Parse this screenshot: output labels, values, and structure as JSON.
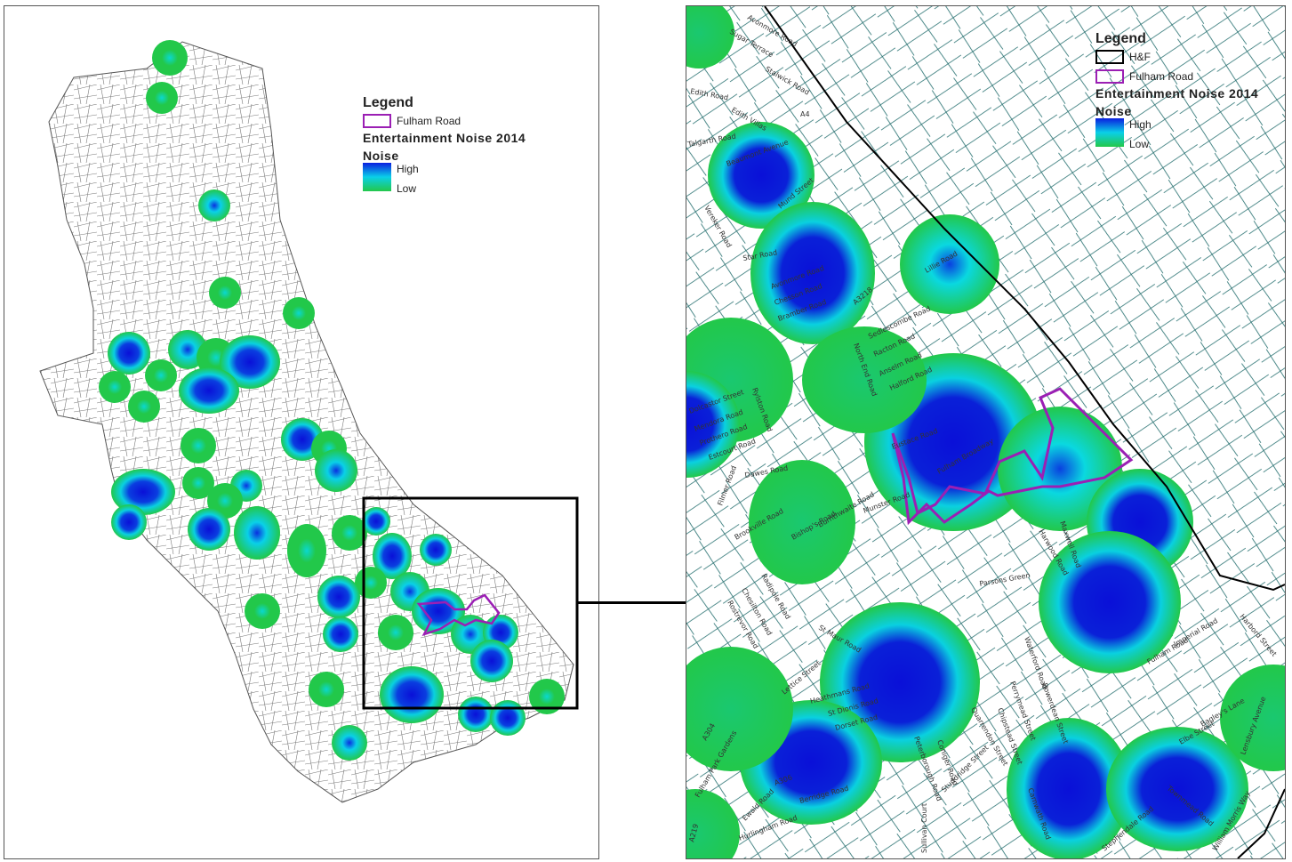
{
  "left_map": {
    "legend": {
      "title": "Legend",
      "boundary_label": "Fulham Road",
      "layer_title": "Entertainment Noise 2014",
      "field_title": "Noise",
      "high_label": "High",
      "low_label": "Low"
    }
  },
  "right_map": {
    "legend": {
      "title": "Legend",
      "hf_label": "H&F",
      "boundary_label": "Fulham Road",
      "layer_title": "Entertainment Noise 2014",
      "field_title": "Noise",
      "high_label": "High",
      "low_label": "Low"
    },
    "road_labels": [
      "Avonmore Road",
      "Sugar Terrace",
      "Stalwick Road",
      "Edith Road",
      "Edith Villas",
      "A4",
      "Talgarth Road",
      "Beaumont Avenue",
      "Vereker Road",
      "Star Road",
      "Mund Street",
      "Avonmore Road",
      "Chesson Road",
      "Bramber Road",
      "A3218",
      "Sedlescombe Road",
      "Racton Road",
      "Anselm Road",
      "Halford Road",
      "North End Road",
      "Lillie Road",
      "Dolcastor Street",
      "Mendora Road",
      "Prothero Road",
      "Estcourt Road",
      "Rylston Road",
      "Hartismere Road",
      "Dawes Road",
      "Eustace Road",
      "Fulham Broadway",
      "Harwood Road",
      "Fulham Road",
      "Munster Road",
      "Filmer Road",
      "Brookville Road",
      "Maxwell Road",
      "Bishop's Road",
      "Burnthwaite Road",
      "Waterford Road",
      "Parsons Green",
      "Radipole Road",
      "Chesilton Road",
      "Rostrevor Road",
      "St Maur Road",
      "Fulham Park Gardens",
      "Lettice Street",
      "Heathmans Road",
      "St Dionis Road",
      "Dorset Road",
      "Peterborough Road",
      "Coniger Road",
      "Quarrendon Street",
      "Chipstead Street",
      "Bowerdean Street",
      "Perrymead Street",
      "Hurlingham Road",
      "Ewald Road",
      "Berridge Road",
      "Stokenchurch Street",
      "Sullivan Court",
      "Studdridge Street",
      "Carnwath Road",
      "Broomhouse Lane",
      "A219",
      "A306",
      "A304",
      "Harbord Street",
      "Bagley's Lane",
      "Imperial Road",
      "Townmead Road",
      "William Morris Way",
      "Lensbury Avenue",
      "Stephendale Road",
      "Sandilands Road",
      "Elbe Street"
    ]
  },
  "colors": {
    "noise_high": "#0a10d8",
    "noise_mid": "#0ad8e0",
    "noise_low": "#22c84a",
    "fulham_road": "#9b1fb4",
    "boundary": "#000000",
    "streets": "#1f6b6b"
  }
}
